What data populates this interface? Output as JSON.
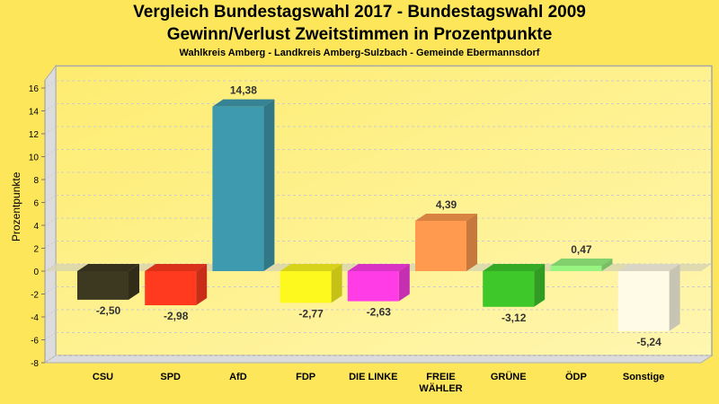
{
  "chart_data": {
    "type": "bar",
    "title": "Vergleich Bundestagswahl 2017 - Bundestagswahl 2009",
    "subtitle": "Gewinn/Verlust Zweitstimmen in Prozentpunkte",
    "caption": "Wahlkreis Amberg - Landkreis Amberg-Sulzbach - Gemeinde Ebermannsdorf",
    "xlabel": "",
    "ylabel": "Prozentpunkte",
    "ylim": [
      -8,
      16
    ],
    "yticks": [
      16,
      14,
      12,
      10,
      8,
      6,
      4,
      2,
      0,
      -2,
      -4,
      -6,
      -8
    ],
    "grid": true,
    "categories": [
      "CSU",
      "SPD",
      "AfD",
      "FDP",
      "DIE LINKE",
      "FREIE WÄHLER",
      "GRÜNE",
      "ÖDP",
      "Sonstige"
    ],
    "category_lines": [
      [
        "CSU"
      ],
      [
        "SPD"
      ],
      [
        "AfD"
      ],
      [
        "FDP"
      ],
      [
        "DIE LINKE"
      ],
      [
        "FREIE",
        "WÄHLER"
      ],
      [
        "GRÜNE"
      ],
      [
        "ÖDP"
      ],
      [
        "Sonstige"
      ]
    ],
    "values": [
      -2.5,
      -2.98,
      14.38,
      -2.77,
      -2.63,
      4.39,
      -3.12,
      0.47,
      -5.24
    ],
    "value_labels": [
      "-2,50",
      "-2,98",
      "14,38",
      "-2,77",
      "-2,63",
      "4,39",
      "-3,12",
      "0,47",
      "-5,24"
    ],
    "colors": [
      "#3d3820",
      "#ff3a1e",
      "#3e9aae",
      "#fdf81e",
      "#ff3ce6",
      "#ff9a4e",
      "#3ec82a",
      "#98f480",
      "#fffbe6"
    ]
  }
}
